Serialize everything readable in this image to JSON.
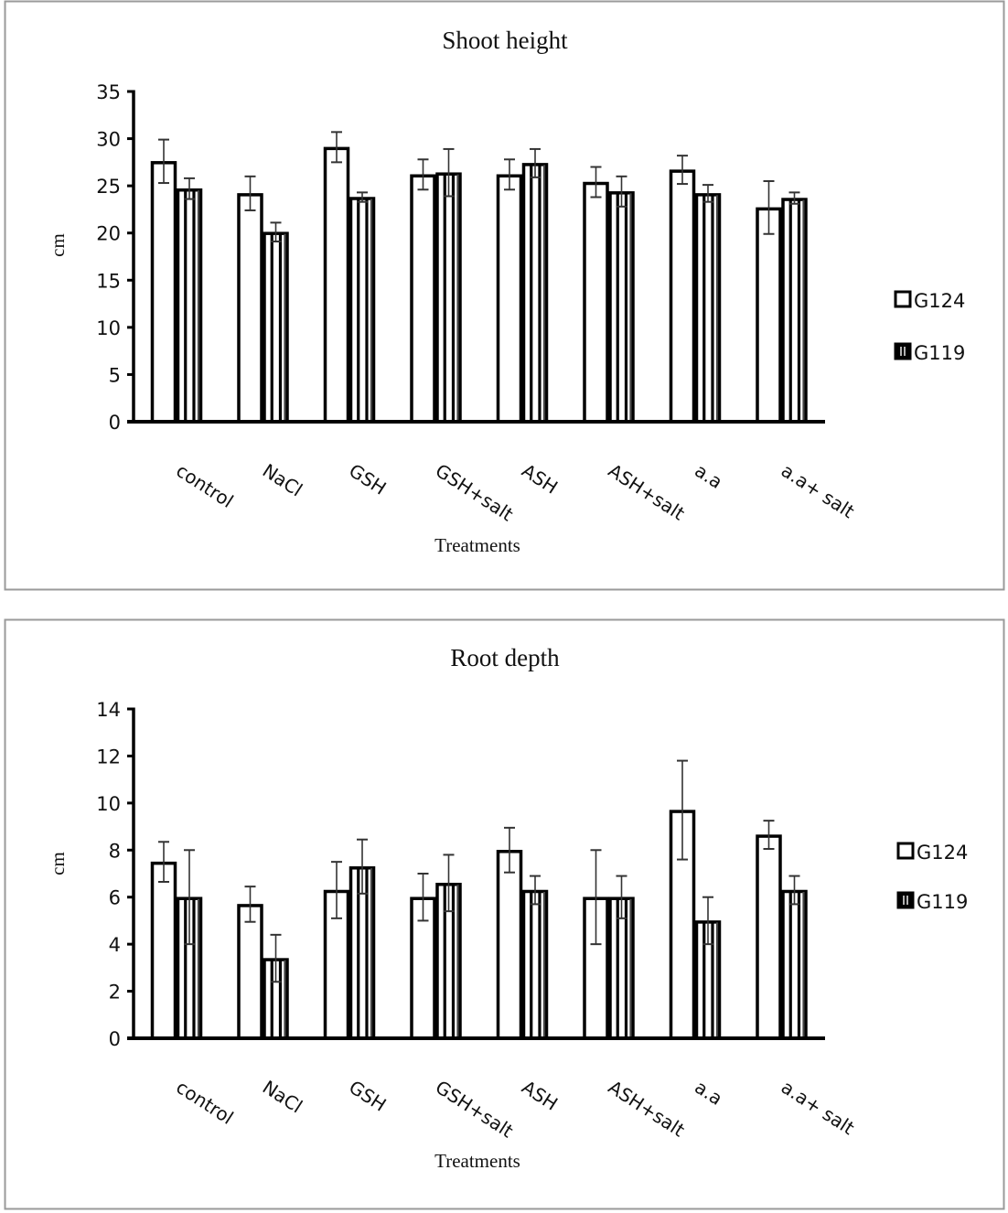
{
  "chart_data": [
    {
      "type": "bar",
      "title": "Shoot height",
      "xlabel": "Treatments",
      "ylabel": "cm",
      "ylim": [
        0,
        35
      ],
      "yticks": [
        0,
        5,
        10,
        15,
        20,
        25,
        30,
        35
      ],
      "grid": false,
      "legend_position": "right",
      "categories": [
        "control",
        "NaCl",
        "GSH",
        "GSH+salt",
        "ASH",
        "ASH+salt",
        "a.a",
        "a.a+ salt"
      ],
      "series": [
        {
          "name": "G124",
          "pattern": "open",
          "values": [
            27.6,
            24.2,
            29.1,
            26.2,
            26.2,
            25.4,
            26.7,
            22.7
          ],
          "errors": [
            2.3,
            1.8,
            1.6,
            1.6,
            1.6,
            1.6,
            1.5,
            2.8
          ]
        },
        {
          "name": "G119",
          "pattern": "vertical-stripes",
          "values": [
            24.7,
            20.1,
            23.8,
            26.4,
            27.4,
            24.4,
            24.2,
            23.7
          ],
          "errors": [
            1.1,
            1.0,
            0.5,
            2.5,
            1.5,
            1.6,
            0.9,
            0.6
          ]
        }
      ]
    },
    {
      "type": "bar",
      "title": "Root depth",
      "xlabel": "Treatments",
      "ylabel": "cm",
      "ylim": [
        0,
        14
      ],
      "yticks": [
        0,
        2,
        4,
        6,
        8,
        10,
        12,
        14
      ],
      "grid": false,
      "legend_position": "right",
      "categories": [
        "control",
        "NaCl",
        "GSH",
        "GSH+salt",
        "ASH",
        "ASH+salt",
        "a.a",
        "a.a+ salt"
      ],
      "series": [
        {
          "name": "G124",
          "pattern": "open",
          "values": [
            7.5,
            5.7,
            6.3,
            6.0,
            8.0,
            6.0,
            9.7,
            8.65
          ],
          "errors": [
            0.85,
            0.75,
            1.2,
            1.0,
            0.95,
            2.0,
            2.1,
            0.6
          ]
        },
        {
          "name": "G119",
          "pattern": "vertical-stripes",
          "values": [
            6.0,
            3.4,
            7.3,
            6.6,
            6.3,
            6.0,
            5.0,
            6.3
          ],
          "errors": [
            2.0,
            1.0,
            1.15,
            1.2,
            0.6,
            0.9,
            1.0,
            0.6
          ]
        }
      ]
    }
  ],
  "colors": {
    "bar_stroke": "#000000",
    "bar_fill": "#ffffff",
    "panel_border": "#9a9a9a",
    "error_bar": "#333333"
  }
}
